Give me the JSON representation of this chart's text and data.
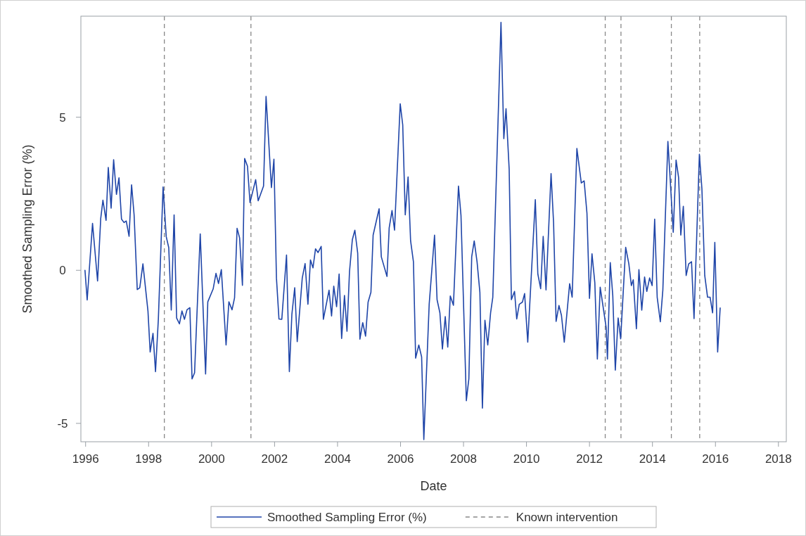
{
  "chart_data": {
    "type": "line",
    "xlabel": "Date",
    "ylabel": "Smoothed Sampling Error (%)",
    "xlim": [
      1995.85,
      2018.25
    ],
    "xticks": [
      1996,
      1998,
      2000,
      2002,
      2004,
      2006,
      2008,
      2010,
      2012,
      2014,
      2016,
      2018
    ],
    "ylim": [
      -5.6,
      8.3
    ],
    "yticks": [
      -5,
      0,
      5
    ],
    "grid": false,
    "legend": "bottom",
    "marker": "none",
    "line_style": "solid",
    "series": [
      {
        "name": "Smoothed Sampling Error (%)",
        "color": "#1f45a8",
        "x": [
          1995.98,
          1996.05,
          1996.22,
          1996.38,
          1996.48,
          1996.55,
          1996.65,
          1996.72,
          1996.81,
          1996.89,
          1996.98,
          1997.06,
          1997.14,
          1997.22,
          1997.29,
          1997.38,
          1997.46,
          1997.54,
          1997.64,
          1997.72,
          1997.82,
          1997.98,
          1998.05,
          1998.14,
          1998.22,
          1998.31,
          1998.46,
          1998.56,
          1998.64,
          1998.72,
          1998.81,
          1998.89,
          1998.98,
          1999.06,
          1999.14,
          1999.22,
          1999.31,
          1999.38,
          1999.46,
          1999.64,
          1999.81,
          1999.88,
          2000.05,
          2000.14,
          2000.22,
          2000.31,
          2000.46,
          2000.55,
          2000.65,
          2000.73,
          2000.81,
          2000.89,
          2000.98,
          2001.05,
          2001.14,
          2001.22,
          2001.4,
          2001.48,
          2001.65,
          2001.73,
          2001.9,
          2001.98,
          2002.06,
          2002.14,
          2002.23,
          2002.38,
          2002.47,
          2002.55,
          2002.64,
          2002.72,
          2002.88,
          2002.97,
          2003.06,
          2003.14,
          2003.22,
          2003.3,
          2003.38,
          2003.48,
          2003.55,
          2003.73,
          2003.81,
          2003.88,
          2003.97,
          2004.05,
          2004.13,
          2004.22,
          2004.3,
          2004.38,
          2004.47,
          2004.55,
          2004.64,
          2004.71,
          2004.8,
          2004.89,
          2004.97,
          2005.06,
          2005.13,
          2005.32,
          2005.39,
          2005.57,
          2005.64,
          2005.73,
          2005.81,
          2005.99,
          2006.07,
          2006.15,
          2006.24,
          2006.32,
          2006.41,
          2006.48,
          2006.58,
          2006.67,
          2006.74,
          2006.91,
          2007.08,
          2007.16,
          2007.25,
          2007.33,
          2007.42,
          2007.5,
          2007.58,
          2007.68,
          2007.84,
          2007.92,
          2008.09,
          2008.17,
          2008.26,
          2008.34,
          2008.43,
          2008.52,
          2008.6,
          2008.68,
          2008.77,
          2008.86,
          2008.93,
          2009.19,
          2009.28,
          2009.35,
          2009.45,
          2009.52,
          2009.62,
          2009.69,
          2009.77,
          2009.87,
          2009.94,
          2010.04,
          2010.28,
          2010.36,
          2010.45,
          2010.53,
          2010.62,
          2010.78,
          2010.86,
          2010.94,
          2011.03,
          2011.11,
          2011.2,
          2011.37,
          2011.45,
          2011.6,
          2011.74,
          2011.83,
          2011.92,
          2012.0,
          2012.08,
          2012.17,
          2012.25,
          2012.34,
          2012.53,
          2012.57,
          2012.66,
          2012.74,
          2012.82,
          2012.91,
          2012.99,
          2013.15,
          2013.25,
          2013.33,
          2013.39,
          2013.49,
          2013.57,
          2013.66,
          2013.75,
          2013.82,
          2013.91,
          2013.99,
          2014.07,
          2014.15,
          2014.25,
          2014.33,
          2014.49,
          2014.57,
          2014.66,
          2014.75,
          2014.83,
          2014.9,
          2014.98,
          2015.07,
          2015.15,
          2015.24,
          2015.32,
          2015.49,
          2015.57,
          2015.66,
          2015.75,
          2015.83,
          2015.91,
          2015.98,
          2016.07,
          2016.15
        ],
        "values": [
          0.0,
          -0.97,
          1.53,
          -0.35,
          1.69,
          2.29,
          1.63,
          3.36,
          2.03,
          3.61,
          2.48,
          3.02,
          1.67,
          1.56,
          1.61,
          1.11,
          2.79,
          1.81,
          -0.63,
          -0.57,
          0.21,
          -1.33,
          -2.67,
          -2.06,
          -3.31,
          -1.6,
          2.72,
          1.1,
          0.74,
          -1.3,
          1.81,
          -1.56,
          -1.75,
          -1.33,
          -1.6,
          -1.29,
          -1.22,
          -3.55,
          -3.35,
          1.19,
          -3.39,
          -1.03,
          -0.61,
          -0.1,
          -0.43,
          0.02,
          -2.44,
          -1.03,
          -1.29,
          -0.9,
          1.37,
          1.06,
          -0.49,
          3.65,
          3.4,
          2.21,
          2.96,
          2.27,
          2.75,
          5.68,
          2.7,
          3.63,
          -0.25,
          -1.59,
          -1.6,
          0.5,
          -3.31,
          -1.44,
          -0.57,
          -2.33,
          -0.25,
          0.22,
          -1.11,
          0.34,
          0.08,
          0.7,
          0.58,
          0.78,
          -1.6,
          -0.65,
          -1.49,
          -0.52,
          -1.19,
          -0.12,
          -2.23,
          -0.82,
          -1.99,
          -0.04,
          1.0,
          1.31,
          0.56,
          -2.25,
          -1.71,
          -2.15,
          -1.04,
          -0.72,
          1.15,
          2.01,
          0.44,
          -0.2,
          1.39,
          1.95,
          1.31,
          5.44,
          4.75,
          1.81,
          3.05,
          0.96,
          0.28,
          -2.87,
          -2.44,
          -2.83,
          -5.53,
          -1.11,
          1.15,
          -0.96,
          -1.39,
          -2.57,
          -1.51,
          -2.51,
          -0.84,
          -1.14,
          2.75,
          1.79,
          -4.26,
          -3.54,
          0.44,
          0.96,
          0.28,
          -0.72,
          -4.5,
          -1.63,
          -2.44,
          -1.39,
          -0.88,
          8.1,
          4.3,
          5.28,
          3.3,
          -0.96,
          -0.69,
          -1.59,
          -1.11,
          -1.04,
          -0.76,
          -2.35,
          2.31,
          -0.12,
          -0.6,
          1.11,
          -0.64,
          3.16,
          1.55,
          -1.67,
          -1.15,
          -1.47,
          -2.35,
          -0.44,
          -0.88,
          3.98,
          2.85,
          2.92,
          1.86,
          -0.92,
          0.54,
          -0.41,
          -2.9,
          -0.55,
          -1.87,
          -2.9,
          0.25,
          -0.83,
          -3.26,
          -1.56,
          -2.24,
          0.75,
          0.21,
          -0.5,
          -0.31,
          -1.91,
          0.02,
          -1.3,
          -0.22,
          -0.69,
          -0.25,
          -0.5,
          1.67,
          -0.88,
          -1.68,
          -0.64,
          4.21,
          2.85,
          1.24,
          3.6,
          3.03,
          1.15,
          2.09,
          -0.17,
          0.21,
          0.28,
          -1.58,
          3.79,
          2.66,
          -0.17,
          -0.88,
          -0.88,
          -1.39,
          0.91,
          -2.67,
          -1.23
        ]
      }
    ],
    "ref_lines": [
      {
        "axis": "x",
        "value": 1998.5,
        "label": "Known intervention",
        "color": "#888888",
        "line_style": "dashed"
      },
      {
        "axis": "x",
        "value": 2001.25,
        "color": "#888888",
        "line_style": "dashed"
      },
      {
        "axis": "x",
        "value": 2012.5,
        "color": "#888888",
        "line_style": "dashed"
      },
      {
        "axis": "x",
        "value": 2013.0,
        "color": "#888888",
        "line_style": "dashed"
      },
      {
        "axis": "x",
        "value": 2014.6,
        "color": "#888888",
        "line_style": "dashed"
      },
      {
        "axis": "x",
        "value": 2015.5,
        "color": "#888888",
        "line_style": "dashed"
      }
    ]
  }
}
